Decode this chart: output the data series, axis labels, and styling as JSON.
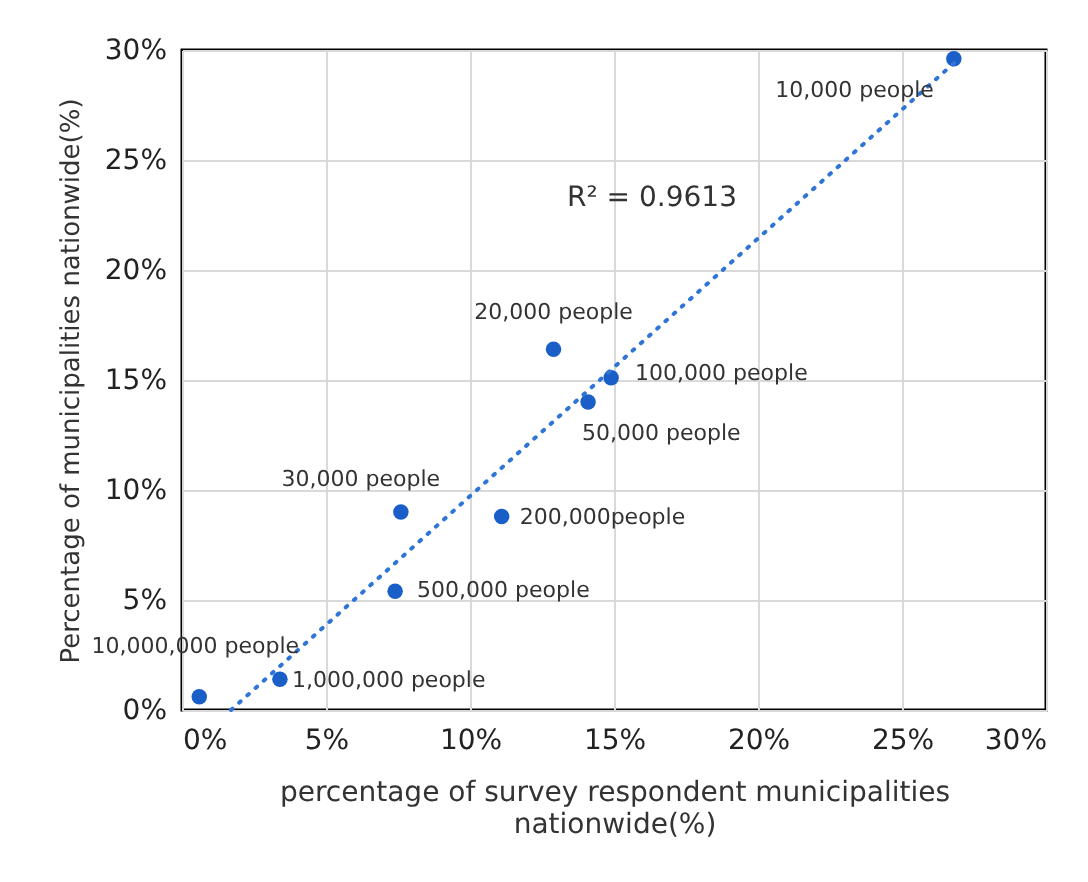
{
  "chart_data": {
    "type": "scatter",
    "xlabel": "percentage of survey respondent municipalities nationwide(%)",
    "ylabel": "Percentage of municipalities nationwide(%)",
    "xlim": [
      0,
      30
    ],
    "ylim": [
      0,
      30
    ],
    "xticks": [
      {
        "value": 0,
        "label": "0%"
      },
      {
        "value": 5,
        "label": "5%"
      },
      {
        "value": 10,
        "label": "10%"
      },
      {
        "value": 15,
        "label": "15%"
      },
      {
        "value": 20,
        "label": "20%"
      },
      {
        "value": 25,
        "label": "25%"
      },
      {
        "value": 30,
        "label": "30%"
      }
    ],
    "yticks": [
      {
        "value": 0,
        "label": "0%"
      },
      {
        "value": 5,
        "label": "5%"
      },
      {
        "value": 10,
        "label": "10%"
      },
      {
        "value": 15,
        "label": "15%"
      },
      {
        "value": 20,
        "label": "20%"
      },
      {
        "value": 25,
        "label": "25%"
      },
      {
        "value": 30,
        "label": "30%"
      }
    ],
    "grid": true,
    "marker": "circle",
    "series": [
      {
        "color": "#1a5fc8",
        "x": [
          26.8,
          12.9,
          14.9,
          14.1,
          7.6,
          11.1,
          7.4,
          3.4,
          0.6
        ],
        "values": [
          29.6,
          16.4,
          15.1,
          14.0,
          9.0,
          8.8,
          5.4,
          1.4,
          0.6
        ]
      },
      {
        "type": "line",
        "color": "#2e75d6",
        "line_style": "dotted",
        "marker": "none",
        "x": [
          1.7,
          26.8
        ],
        "values": [
          0,
          29.4
        ]
      }
    ],
    "annotations": [
      "R² = 0.9613",
      {
        "text": "10,000 people",
        "x": 26.8,
        "y": 29.6
      },
      {
        "text": "20,000 people",
        "x": 12.9,
        "y": 16.4
      },
      {
        "text": "100,000 people",
        "x": 14.9,
        "y": 15.1
      },
      {
        "text": "50,000 people",
        "x": 14.1,
        "y": 14.0
      },
      {
        "text": "30,000 people",
        "x": 7.6,
        "y": 9.0
      },
      {
        "text": "200,000people",
        "x": 11.1,
        "y": 8.8
      },
      {
        "text": "500,000 people",
        "x": 7.4,
        "y": 5.4
      },
      {
        "text": "1,000,000 people",
        "x": 3.4,
        "y": 1.4
      },
      {
        "text": "10,000,000 people",
        "x": 0.6,
        "y": 0.6
      }
    ]
  }
}
